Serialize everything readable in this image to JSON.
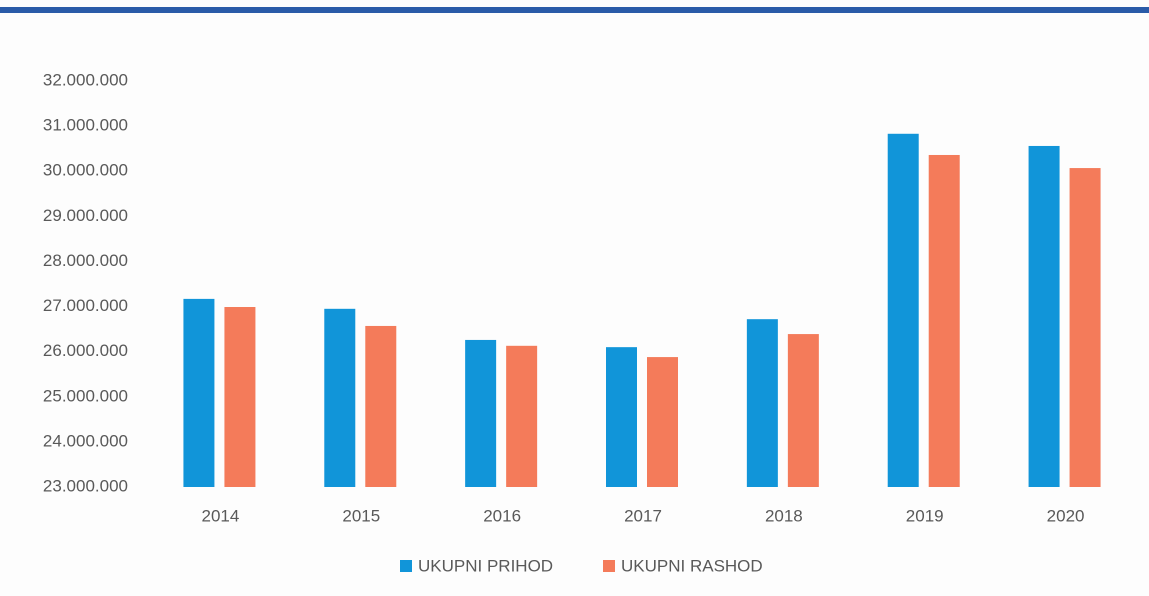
{
  "chart_data": {
    "type": "bar",
    "categories": [
      "2014",
      "2015",
      "2016",
      "2017",
      "2018",
      "2019",
      "2020"
    ],
    "series": [
      {
        "name": "UKUPNI PRIHOD",
        "color": "#1195d9",
        "values": [
          27170000,
          26950000,
          26260000,
          26100000,
          26720000,
          30830000,
          30560000
        ]
      },
      {
        "name": "UKUPNI RASHOD",
        "color": "#f47b5a",
        "values": [
          26990000,
          26570000,
          26130000,
          25880000,
          26390000,
          30360000,
          30070000
        ]
      }
    ],
    "ylim": [
      23000000,
      32000000
    ],
    "yticks": [
      {
        "value": 23000000,
        "label": "23.000.000"
      },
      {
        "value": 24000000,
        "label": "24.000.000"
      },
      {
        "value": 25000000,
        "label": "25.000.000"
      },
      {
        "value": 26000000,
        "label": "26.000.000"
      },
      {
        "value": 27000000,
        "label": "27.000.000"
      },
      {
        "value": 28000000,
        "label": "28.000.000"
      },
      {
        "value": 29000000,
        "label": "29.000.000"
      },
      {
        "value": 30000000,
        "label": "30.000.000"
      },
      {
        "value": 31000000,
        "label": "31.000.000"
      },
      {
        "value": 32000000,
        "label": "32.000.000"
      }
    ],
    "grid": false,
    "legend": "bottom"
  }
}
